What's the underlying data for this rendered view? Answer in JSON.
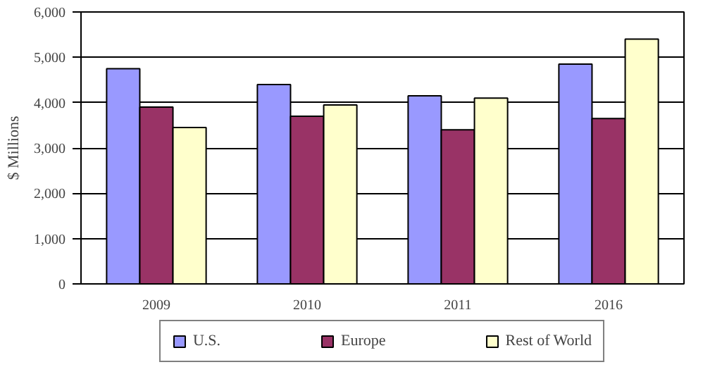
{
  "chart_data": {
    "type": "bar",
    "ylabel": "$ Millions",
    "categories": [
      "2009",
      "2010",
      "2011",
      "2016"
    ],
    "series": [
      {
        "name": "U.S.",
        "color": "#9999ff",
        "values": [
          4750,
          4400,
          4150,
          4850
        ]
      },
      {
        "name": "Europe",
        "color": "#993366",
        "values": [
          3900,
          3700,
          3400,
          3650
        ]
      },
      {
        "name": "Rest of World",
        "color": "#ffffcc",
        "values": [
          3450,
          3950,
          4100,
          5400
        ]
      }
    ],
    "ylim": [
      0,
      6000
    ],
    "yticks": [
      {
        "value": 0,
        "label": "0"
      },
      {
        "value": 1000,
        "label": "1,000"
      },
      {
        "value": 2000,
        "label": "2,000"
      },
      {
        "value": 3000,
        "label": "3,000"
      },
      {
        "value": 4000,
        "label": "4,000"
      },
      {
        "value": 5000,
        "label": "5,000"
      },
      {
        "value": 6000,
        "label": "6,000"
      }
    ],
    "grid": "y",
    "legend": "bottom"
  }
}
